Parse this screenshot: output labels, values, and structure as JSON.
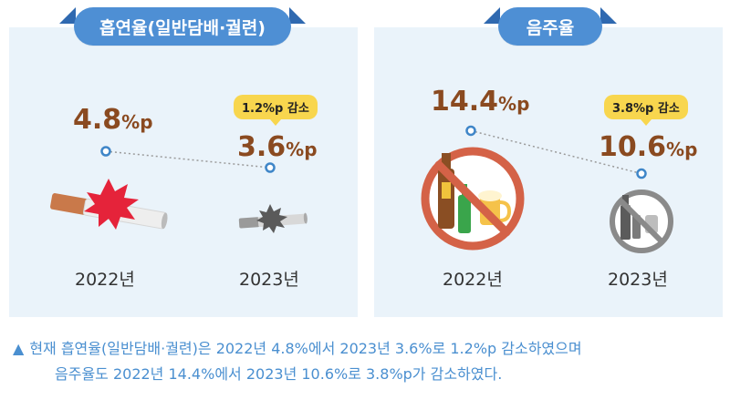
{
  "chart_data": [
    {
      "type": "line",
      "title": "흡연율(일반담배·궐련)",
      "categories": [
        "2022년",
        "2023년"
      ],
      "values": [
        4.8,
        3.6
      ],
      "value_labels": [
        "4.8",
        "3.6"
      ],
      "unit": "%p",
      "change_label": "1.2%p 감소"
    },
    {
      "type": "line",
      "title": "음주율",
      "categories": [
        "2022년",
        "2023년"
      ],
      "values": [
        14.4,
        10.6
      ],
      "value_labels": [
        "14.4",
        "10.6"
      ],
      "unit": "%p",
      "change_label": "3.8%p 감소"
    }
  ],
  "note": {
    "line1": "현재 흡연율(일반담배·궐련)은 2022년 4.8%에서 2023년 3.6%로 1.2%p 감소하였으며",
    "line2": "음주율도 2022년 14.4%에서 2023년 10.6%로 3.8%p가 감소하였다.",
    "bullet": "▲"
  },
  "colors": {
    "panel_bg": "#eaf3fa",
    "tab": "#4e8fd4",
    "value_text": "#8a4a20",
    "badge": "#f8d64e",
    "point": "#3f86c8",
    "note_text": "#4a8fd0"
  }
}
